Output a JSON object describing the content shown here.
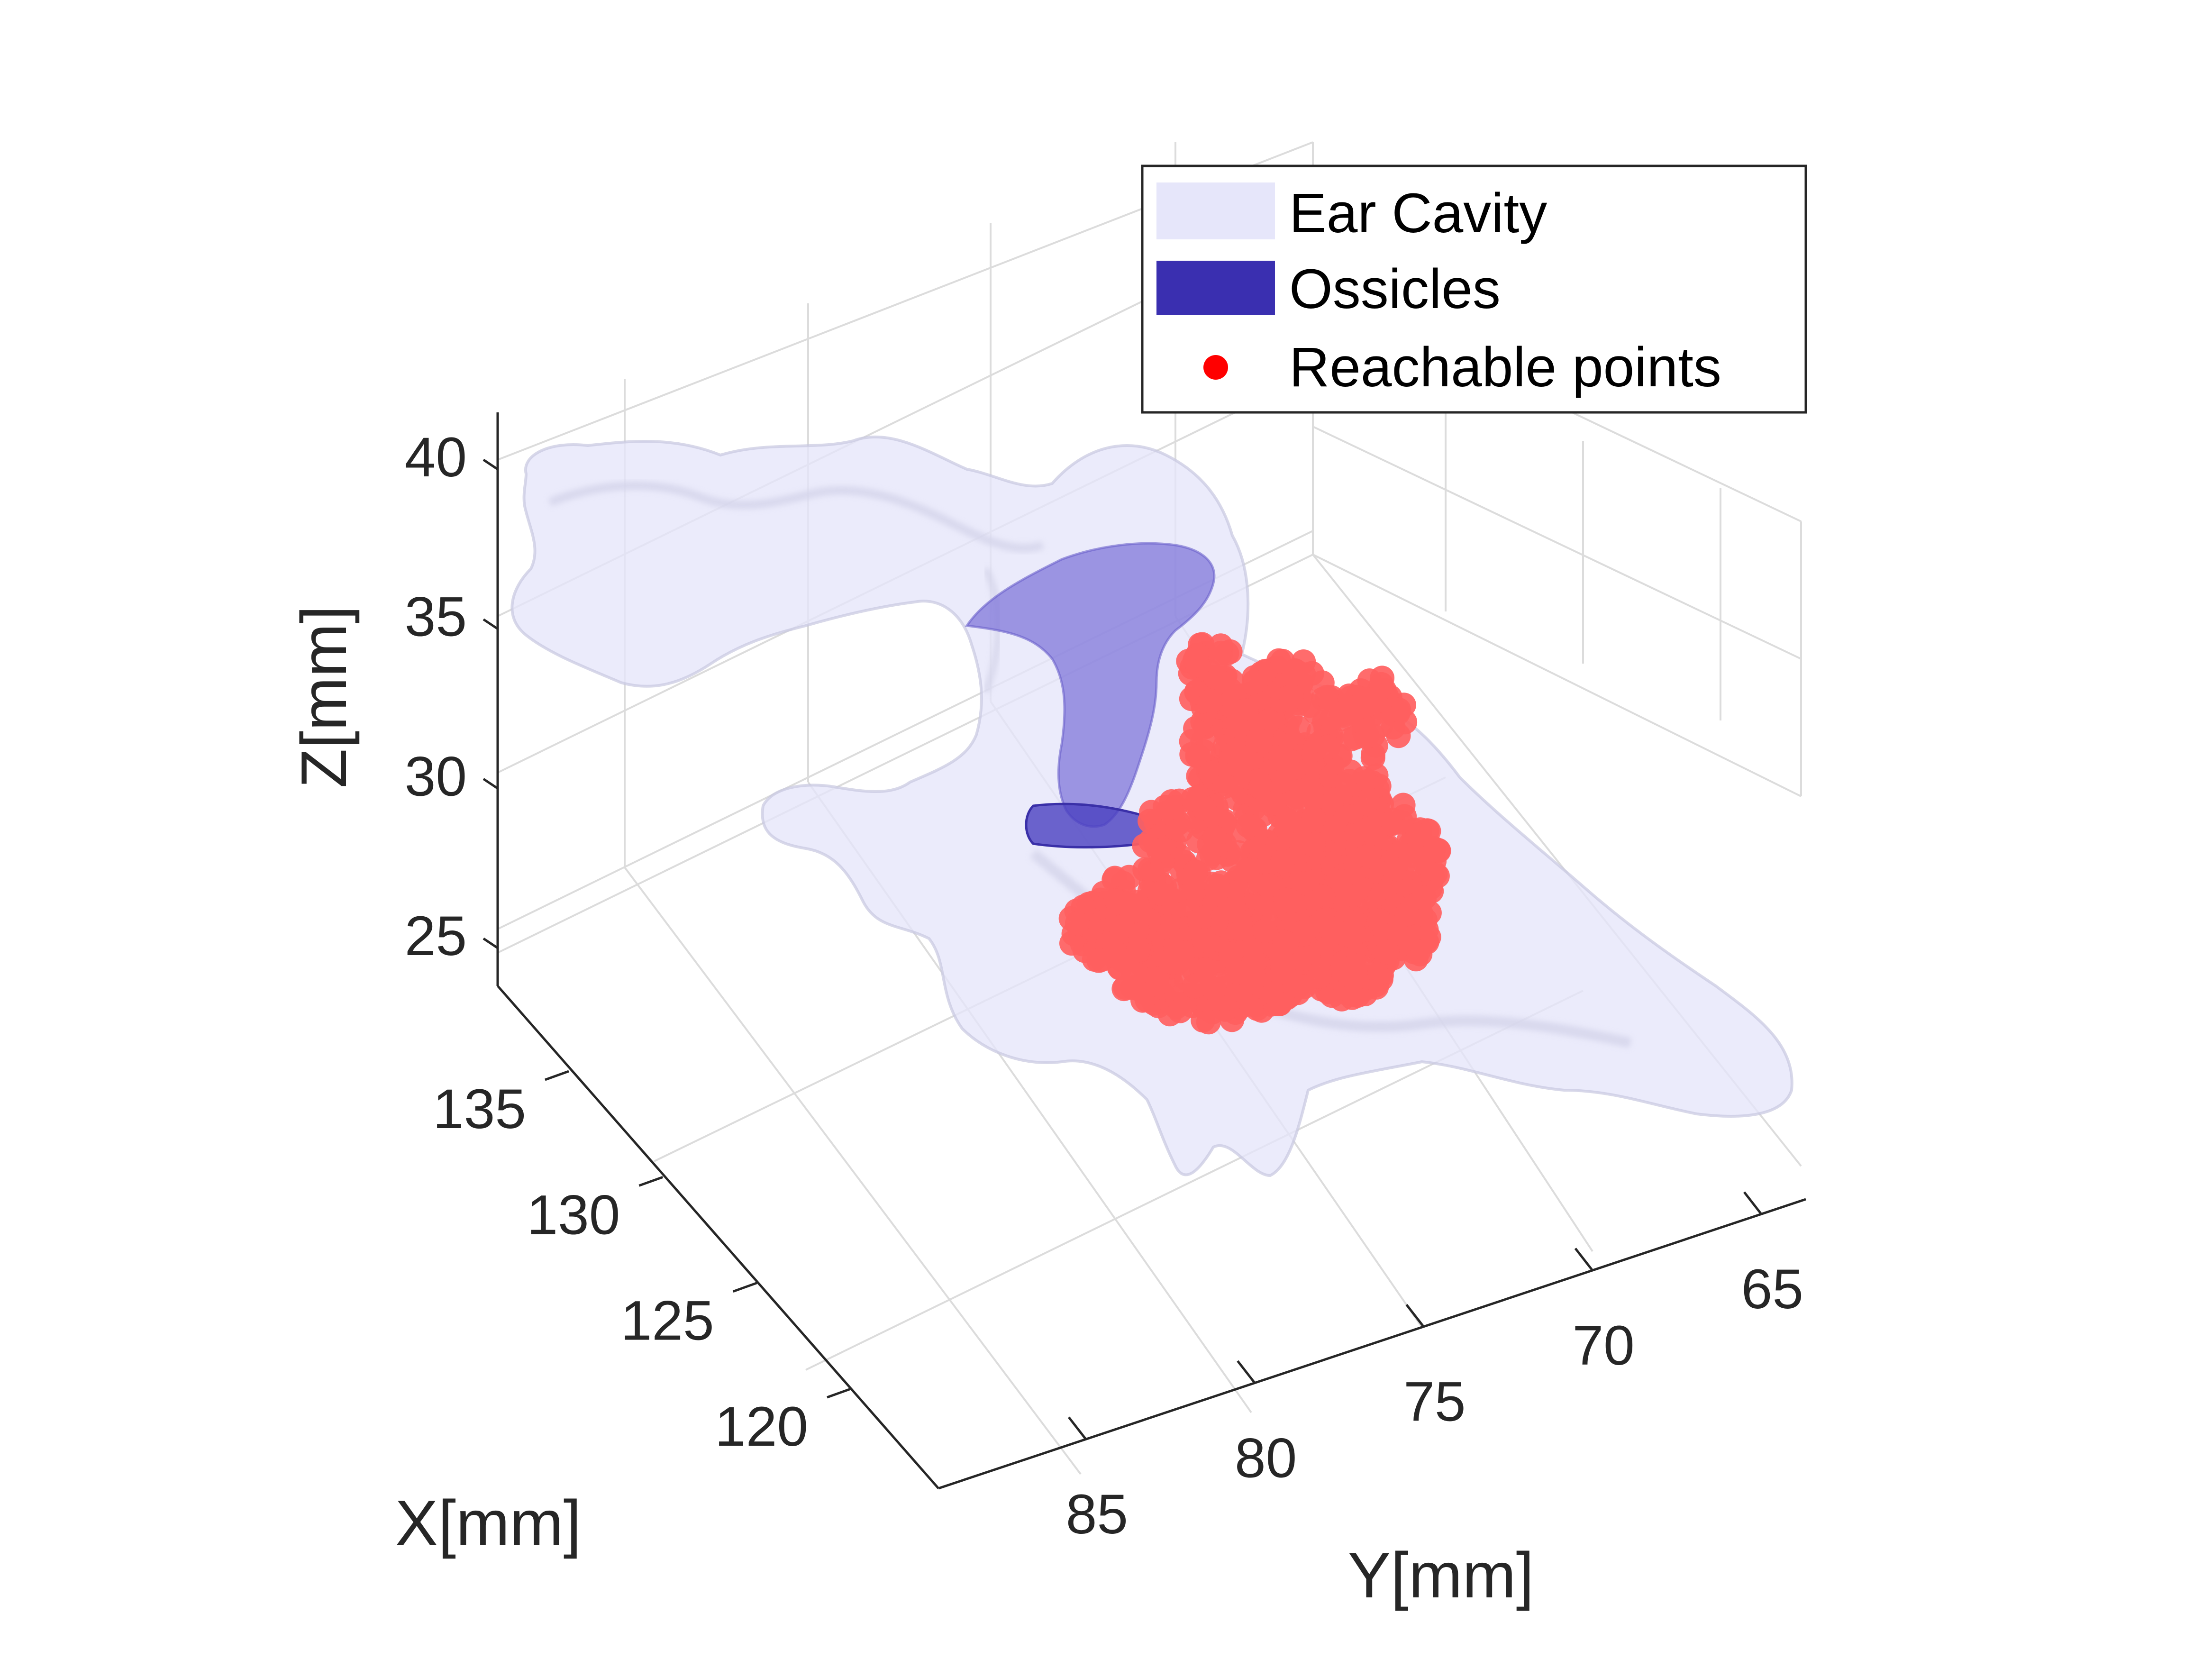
{
  "chart_data": {
    "type": "scatter",
    "projection": "3d",
    "title": "",
    "xlabel": "X[mm]",
    "ylabel": "Y[mm]",
    "zlabel": "Z[mm]",
    "x_ticks": [
      120,
      125,
      130,
      135
    ],
    "y_ticks": [
      85,
      80,
      75,
      70,
      65
    ],
    "z_ticks": [
      25,
      30,
      35,
      40
    ],
    "xlim": [
      117,
      139
    ],
    "ylim": [
      62,
      89
    ],
    "zlim": [
      23,
      42
    ],
    "grid": true,
    "legend_position": "top-right",
    "series": [
      {
        "name": "Ear Cavity",
        "kind": "surface",
        "color": "#e6e6fa"
      },
      {
        "name": "Ossicles",
        "kind": "surface",
        "color": "#3a2fb0"
      },
      {
        "name": "Reachable points",
        "kind": "scatter",
        "color": "#ff0000",
        "point_color": "#ff6060"
      }
    ]
  }
}
